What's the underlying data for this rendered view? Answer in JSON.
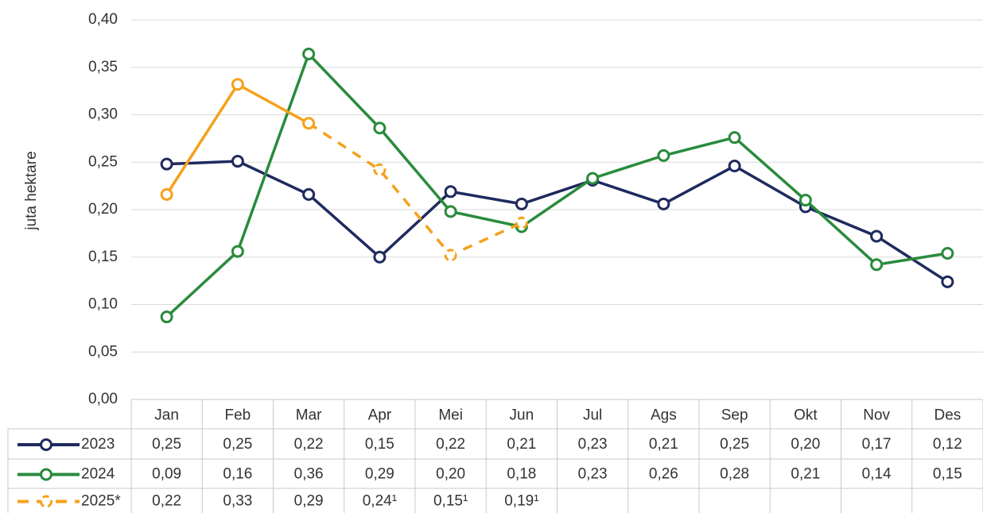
{
  "chart_data": {
    "type": "line",
    "y_label": "juta hektare",
    "categories": [
      "Jan",
      "Feb",
      "Mar",
      "Apr",
      "Mei",
      "Jun",
      "Jul",
      "Ags",
      "Sep",
      "Okt",
      "Nov",
      "Des"
    ],
    "series": [
      {
        "name": "2023",
        "color": "#1f2a5e",
        "values": [
          0.248,
          0.251,
          0.216,
          0.15,
          0.219,
          0.206,
          0.231,
          0.206,
          0.246,
          0.203,
          0.172,
          0.124
        ],
        "value_labels": [
          "0,25",
          "0,25",
          "0,22",
          "0,15",
          "0,22",
          "0,21",
          "0,23",
          "0,21",
          "0,25",
          "0,20",
          "0,17",
          "0,12"
        ]
      },
      {
        "name": "2024",
        "color": "#2a8b3c",
        "values": [
          0.087,
          0.156,
          0.364,
          0.286,
          0.198,
          0.182,
          0.233,
          0.257,
          0.276,
          0.21,
          0.142,
          0.154
        ],
        "value_labels": [
          "0,09",
          "0,16",
          "0,36",
          "0,29",
          "0,20",
          "0,18",
          "0,23",
          "0,26",
          "0,28",
          "0,21",
          "0,14",
          "0,15"
        ]
      },
      {
        "name": "2025*",
        "color": "#f5a11c",
        "values": [
          0.216,
          0.332,
          0.291,
          0.242,
          0.152,
          0.186,
          null,
          null,
          null,
          null,
          null,
          null
        ],
        "value_labels": [
          "0,22",
          "0,33",
          "0,29",
          "0,24¹",
          "0,15¹",
          "0,19¹",
          null,
          null,
          null,
          null,
          null,
          null
        ],
        "estimate": [
          false,
          false,
          false,
          true,
          true,
          true,
          null,
          null,
          null,
          null,
          null,
          null
        ]
      }
    ],
    "ylim": [
      0,
      0.4
    ],
    "yticks": [
      {
        "value": 0,
        "label": "0,00"
      },
      {
        "value": 0.05,
        "label": "0,05"
      },
      {
        "value": 0.1,
        "label": "0,10"
      },
      {
        "value": 0.15,
        "label": "0,15"
      },
      {
        "value": 0.2,
        "label": "0,20"
      },
      {
        "value": 0.25,
        "label": "0,25"
      },
      {
        "value": 0.3,
        "label": "0,30"
      },
      {
        "value": 0.35,
        "label": "0,35"
      },
      {
        "value": 0.4,
        "label": "0,40"
      }
    ],
    "grid": true
  }
}
